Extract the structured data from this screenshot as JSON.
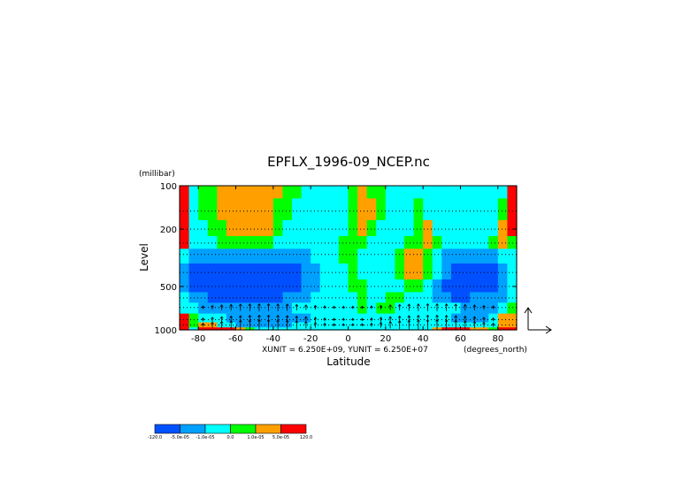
{
  "chart_data": {
    "type": "heatmap",
    "title": "EPFLX_1996-09_NCEP.nc",
    "xlabel": "Latitude",
    "ylabel": "Level",
    "y_units": "(millibar)",
    "x_units": "(degrees_north)",
    "x_ticks": [
      "-80",
      "-60",
      "-40",
      "-20",
      "0",
      "20",
      "40",
      "60",
      "80"
    ],
    "y_ticks": [
      "100",
      "200",
      "500",
      "1000"
    ],
    "xlim": [
      -90,
      90
    ],
    "ylim": [
      1000,
      100
    ],
    "y_scale": "log",
    "vector_units": "XUNIT = 6.250E+09, YUNIT = 6.250E+07",
    "colorbar": {
      "labels": [
        "-120.0",
        "-5.0e-05",
        "-1.0e-05",
        "0.0",
        "1.0e-05",
        "5.0e-05",
        "120.0"
      ],
      "colors": [
        "#0050ff",
        "#00a0ff",
        "#00ffff",
        "#00ff00",
        "#ffa000",
        "#ff0000"
      ]
    },
    "field": {
      "x": [
        -87.5,
        -82.5,
        -77.5,
        -72.5,
        -67.5,
        -62.5,
        -57.5,
        -52.5,
        -47.5,
        -42.5,
        -37.5,
        -32.5,
        -27.5,
        -22.5,
        -17.5,
        -12.5,
        -7.5,
        -2.5,
        2.5,
        7.5,
        12.5,
        17.5,
        22.5,
        27.5,
        32.5,
        37.5,
        42.5,
        47.5,
        52.5,
        57.5,
        62.5,
        67.5,
        72.5,
        77.5,
        82.5,
        87.5
      ],
      "levels": [
        100,
        150,
        200,
        250,
        300,
        400,
        500,
        600,
        700,
        850,
        925,
        1000
      ],
      "class_index": [
        [
          5,
          2,
          3,
          3,
          4,
          4,
          4,
          4,
          4,
          4,
          4,
          3,
          3,
          2,
          2,
          2,
          2,
          2,
          3,
          4,
          3,
          3,
          2,
          2,
          2,
          2,
          2,
          2,
          2,
          2,
          2,
          2,
          2,
          2,
          2,
          5
        ],
        [
          5,
          2,
          3,
          3,
          4,
          4,
          4,
          4,
          4,
          4,
          3,
          3,
          2,
          2,
          2,
          2,
          2,
          2,
          3,
          4,
          4,
          3,
          2,
          2,
          2,
          3,
          2,
          2,
          2,
          2,
          2,
          2,
          2,
          2,
          3,
          5
        ],
        [
          5,
          2,
          2,
          3,
          3,
          4,
          4,
          4,
          4,
          4,
          3,
          2,
          2,
          2,
          2,
          2,
          2,
          2,
          3,
          4,
          3,
          2,
          2,
          2,
          2,
          3,
          4,
          2,
          2,
          2,
          2,
          2,
          2,
          2,
          4,
          5
        ],
        [
          5,
          2,
          2,
          2,
          3,
          3,
          3,
          3,
          3,
          3,
          2,
          2,
          2,
          2,
          2,
          2,
          2,
          3,
          3,
          3,
          2,
          2,
          2,
          2,
          3,
          3,
          4,
          3,
          2,
          2,
          2,
          2,
          2,
          3,
          4,
          3
        ],
        [
          2,
          1,
          1,
          1,
          1,
          1,
          1,
          1,
          1,
          1,
          1,
          1,
          1,
          1,
          2,
          2,
          2,
          3,
          3,
          2,
          2,
          2,
          2,
          3,
          4,
          4,
          3,
          2,
          1,
          1,
          1,
          1,
          1,
          1,
          2,
          2
        ],
        [
          1,
          0,
          0,
          0,
          0,
          0,
          0,
          0,
          0,
          0,
          0,
          0,
          0,
          1,
          1,
          2,
          2,
          2,
          3,
          2,
          2,
          2,
          2,
          3,
          4,
          4,
          3,
          2,
          1,
          0,
          0,
          0,
          0,
          0,
          1,
          2
        ],
        [
          1,
          0,
          0,
          0,
          0,
          0,
          0,
          0,
          0,
          0,
          0,
          0,
          0,
          1,
          1,
          2,
          2,
          2,
          3,
          3,
          2,
          2,
          2,
          2,
          3,
          3,
          2,
          1,
          0,
          0,
          0,
          0,
          0,
          0,
          1,
          2
        ],
        [
          2,
          1,
          1,
          0,
          0,
          0,
          0,
          0,
          0,
          0,
          0,
          1,
          1,
          1,
          2,
          2,
          2,
          2,
          2,
          3,
          2,
          2,
          3,
          3,
          2,
          2,
          2,
          1,
          1,
          0,
          0,
          1,
          1,
          1,
          1,
          2
        ],
        [
          2,
          2,
          1,
          1,
          1,
          1,
          1,
          1,
          1,
          1,
          1,
          1,
          2,
          2,
          2,
          2,
          2,
          2,
          2,
          3,
          2,
          3,
          3,
          2,
          2,
          2,
          2,
          2,
          2,
          2,
          1,
          1,
          1,
          1,
          2,
          3
        ],
        [
          5,
          3,
          2,
          2,
          2,
          1,
          1,
          1,
          1,
          1,
          1,
          1,
          1,
          1,
          2,
          2,
          2,
          2,
          2,
          2,
          2,
          2,
          2,
          2,
          2,
          2,
          2,
          2,
          2,
          1,
          1,
          1,
          1,
          2,
          4,
          4
        ],
        [
          5,
          3,
          4,
          4,
          2,
          2,
          1,
          1,
          1,
          1,
          1,
          1,
          2,
          2,
          2,
          2,
          2,
          2,
          2,
          2,
          2,
          2,
          2,
          2,
          2,
          2,
          2,
          2,
          2,
          2,
          2,
          2,
          2,
          2,
          4,
          4
        ],
        [
          5,
          2,
          5,
          5,
          5,
          5,
          4,
          3,
          2,
          2,
          2,
          2,
          2,
          2,
          2,
          2,
          2,
          2,
          2,
          2,
          2,
          2,
          2,
          2,
          2,
          2,
          2,
          4,
          5,
          5,
          5,
          4,
          4,
          3,
          5,
          5
        ]
      ]
    }
  }
}
